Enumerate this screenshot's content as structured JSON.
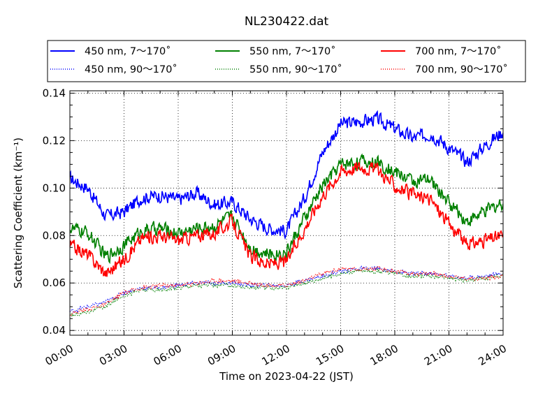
{
  "chart_data": {
    "type": "line",
    "title": "NL230422.dat",
    "xlabel": "Time on 2023-04-22 (JST)",
    "ylabel": "Scattering Coefficient (km⁻¹)",
    "xlim": [
      "00:00",
      "24:00"
    ],
    "ylim": [
      0.038,
      0.141
    ],
    "grid": true,
    "legend_position": "top (above plot, 3 columns)",
    "x_ticks": [
      "00:00",
      "03:00",
      "06:00",
      "09:00",
      "12:00",
      "15:00",
      "18:00",
      "21:00",
      "24:00"
    ],
    "y_ticks": [
      "0.04",
      "0.06",
      "0.08",
      "0.10",
      "0.12",
      "0.14"
    ],
    "x_hours": [
      0,
      1,
      2,
      3,
      4,
      5,
      6,
      7,
      8,
      9,
      10,
      11,
      12,
      13,
      14,
      15,
      16,
      17,
      18,
      19,
      20,
      21,
      22,
      23,
      24
    ],
    "series": [
      {
        "name": "450 nm, 7～170˚",
        "color": "#0000ff",
        "style": "solid",
        "values": [
          0.104,
          0.1,
          0.088,
          0.09,
          0.096,
          0.097,
          0.095,
          0.098,
          0.093,
          0.094,
          0.087,
          0.083,
          0.082,
          0.096,
          0.115,
          0.127,
          0.128,
          0.129,
          0.125,
          0.121,
          0.123,
          0.117,
          0.111,
          0.118,
          0.124
        ]
      },
      {
        "name": "550 nm, 7～170˚",
        "color": "#008000",
        "style": "solid",
        "values": [
          0.083,
          0.081,
          0.071,
          0.076,
          0.082,
          0.083,
          0.081,
          0.083,
          0.084,
          0.088,
          0.075,
          0.072,
          0.073,
          0.087,
          0.101,
          0.11,
          0.111,
          0.111,
          0.107,
          0.103,
          0.103,
          0.094,
          0.086,
          0.09,
          0.094
        ]
      },
      {
        "name": "700 nm, 7～170˚",
        "color": "#ff0000",
        "style": "solid",
        "values": [
          0.076,
          0.072,
          0.064,
          0.07,
          0.079,
          0.08,
          0.078,
          0.08,
          0.081,
          0.086,
          0.071,
          0.068,
          0.069,
          0.083,
          0.097,
          0.107,
          0.109,
          0.108,
          0.101,
          0.097,
          0.095,
          0.085,
          0.076,
          0.078,
          0.08
        ]
      },
      {
        "name": "450 nm, 90～170˚",
        "color": "#0000ff",
        "style": "dotted",
        "values": [
          0.048,
          0.05,
          0.052,
          0.056,
          0.058,
          0.058,
          0.059,
          0.06,
          0.06,
          0.06,
          0.059,
          0.059,
          0.059,
          0.061,
          0.063,
          0.065,
          0.066,
          0.066,
          0.065,
          0.064,
          0.064,
          0.063,
          0.062,
          0.063,
          0.064
        ]
      },
      {
        "name": "550 nm, 90～170˚",
        "color": "#008000",
        "style": "dotted",
        "values": [
          0.046,
          0.048,
          0.05,
          0.055,
          0.057,
          0.057,
          0.058,
          0.059,
          0.059,
          0.059,
          0.058,
          0.058,
          0.058,
          0.06,
          0.062,
          0.064,
          0.065,
          0.065,
          0.064,
          0.063,
          0.063,
          0.062,
          0.061,
          0.062,
          0.063
        ]
      },
      {
        "name": "700 nm, 90～170˚",
        "color": "#ff0000",
        "style": "dotted",
        "values": [
          0.047,
          0.049,
          0.051,
          0.056,
          0.058,
          0.059,
          0.059,
          0.06,
          0.061,
          0.061,
          0.06,
          0.059,
          0.059,
          0.061,
          0.064,
          0.066,
          0.066,
          0.066,
          0.065,
          0.064,
          0.064,
          0.063,
          0.062,
          0.062,
          0.063
        ]
      }
    ]
  }
}
